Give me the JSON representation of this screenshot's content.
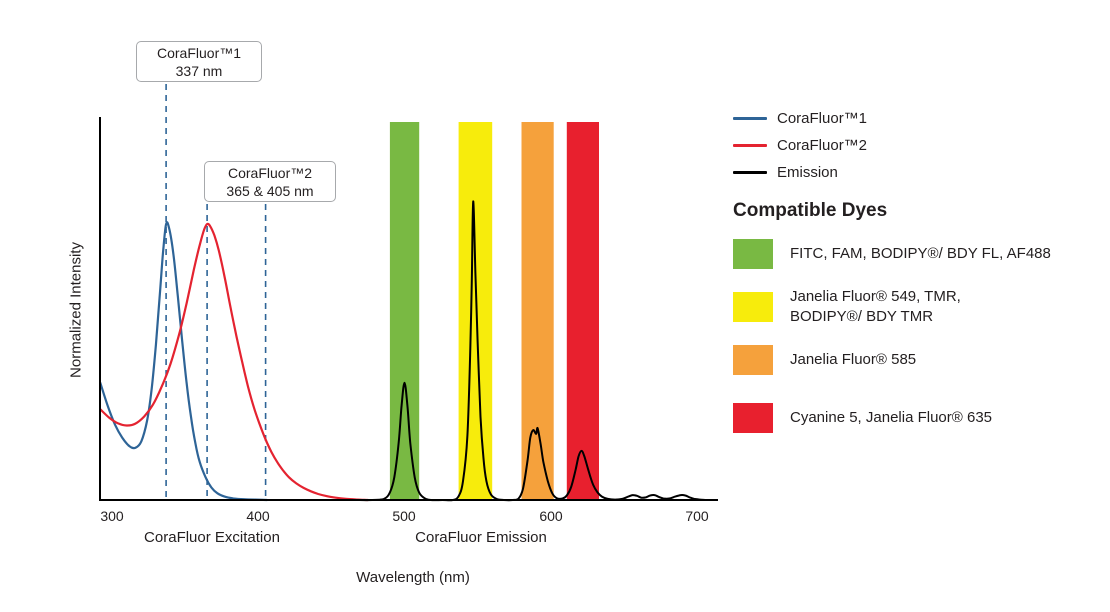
{
  "chart_data": {
    "type": "line",
    "title": "",
    "xlabel": "Wavelength (nm)",
    "ylabel": "Normalized Intensity",
    "ylim": [
      0,
      1
    ],
    "xlim_nm": [
      292,
      712
    ],
    "x_ticks": [
      "300",
      "400",
      "500",
      "600",
      "700"
    ],
    "x_tick_values": [
      300,
      400,
      500,
      600,
      700
    ],
    "grid": false,
    "axis_color": "#000000",
    "annotation_line_color": "#2e6497",
    "region_labels": [
      {
        "label": "CoraFluor Excitation"
      },
      {
        "label": "CoraFluor Emission"
      }
    ],
    "annotations": [
      {
        "title": "CoraFluor™1",
        "value": "337 nm",
        "lines_nm": [
          337
        ]
      },
      {
        "title": "CoraFluor™2",
        "value": "365 & 405 nm",
        "lines_nm": [
          365,
          405
        ]
      }
    ],
    "bands": [
      {
        "name": "green-filter-band",
        "color": "#79b943",
        "from_nm": 490,
        "to_nm": 510
      },
      {
        "name": "yellow-filter-band",
        "color": "#f7ec0c",
        "from_nm": 537,
        "to_nm": 560
      },
      {
        "name": "orange-filter-band",
        "color": "#f5a13c",
        "from_nm": 580,
        "to_nm": 602
      },
      {
        "name": "red-filter-band",
        "color": "#e8202e",
        "from_nm": 611,
        "to_nm": 633
      }
    ],
    "series": [
      {
        "key": "corafluor1-excitation",
        "name": "CoraFluor™1",
        "color": "#2e6497",
        "points": [
          [
            292,
            0.31
          ],
          [
            297,
            0.25
          ],
          [
            302,
            0.2
          ],
          [
            307,
            0.165
          ],
          [
            312,
            0.142
          ],
          [
            316,
            0.138
          ],
          [
            320,
            0.155
          ],
          [
            324,
            0.21
          ],
          [
            327,
            0.29
          ],
          [
            330,
            0.41
          ],
          [
            333,
            0.56
          ],
          [
            335,
            0.66
          ],
          [
            337,
            0.73
          ],
          [
            339,
            0.72
          ],
          [
            342,
            0.65
          ],
          [
            345,
            0.54
          ],
          [
            348,
            0.42
          ],
          [
            351,
            0.31
          ],
          [
            354,
            0.22
          ],
          [
            357,
            0.15
          ],
          [
            360,
            0.1
          ],
          [
            364,
            0.06
          ],
          [
            368,
            0.033
          ],
          [
            372,
            0.018
          ],
          [
            377,
            0.009
          ],
          [
            383,
            0.004
          ],
          [
            390,
            0.002
          ],
          [
            398,
            0.001
          ],
          [
            406,
            0
          ]
        ]
      },
      {
        "key": "corafluor2-excitation",
        "name": "CoraFluor™2",
        "color": "#e42330",
        "points": [
          [
            292,
            0.24
          ],
          [
            298,
            0.218
          ],
          [
            304,
            0.203
          ],
          [
            310,
            0.197
          ],
          [
            316,
            0.202
          ],
          [
            322,
            0.221
          ],
          [
            328,
            0.252
          ],
          [
            334,
            0.3
          ],
          [
            340,
            0.36
          ],
          [
            346,
            0.44
          ],
          [
            351,
            0.52
          ],
          [
            356,
            0.61
          ],
          [
            360,
            0.675
          ],
          [
            363,
            0.715
          ],
          [
            365,
            0.73
          ],
          [
            367,
            0.725
          ],
          [
            370,
            0.7
          ],
          [
            373,
            0.66
          ],
          [
            377,
            0.59
          ],
          [
            381,
            0.51
          ],
          [
            385,
            0.435
          ],
          [
            389,
            0.365
          ],
          [
            393,
            0.3
          ],
          [
            397,
            0.245
          ],
          [
            401,
            0.2
          ],
          [
            405,
            0.16
          ],
          [
            409,
            0.127
          ],
          [
            413,
            0.1
          ],
          [
            417,
            0.078
          ],
          [
            421,
            0.06
          ],
          [
            426,
            0.044
          ],
          [
            431,
            0.032
          ],
          [
            436,
            0.023
          ],
          [
            441,
            0.016
          ],
          [
            447,
            0.01
          ],
          [
            453,
            0.006
          ],
          [
            460,
            0.003
          ],
          [
            468,
            0.001
          ],
          [
            475,
            0
          ]
        ]
      },
      {
        "key": "emission",
        "name": "Emission",
        "color": "#000000",
        "points": [
          [
            292,
            0
          ],
          [
            350,
            0
          ],
          [
            420,
            0
          ],
          [
            460,
            0
          ],
          [
            478,
            0
          ],
          [
            486,
            0.003
          ],
          [
            490,
            0.02
          ],
          [
            493,
            0.06
          ],
          [
            496,
            0.15
          ],
          [
            498,
            0.25
          ],
          [
            500,
            0.31
          ],
          [
            502,
            0.25
          ],
          [
            504,
            0.15
          ],
          [
            507,
            0.06
          ],
          [
            510,
            0.02
          ],
          [
            514,
            0.004
          ],
          [
            518,
            0
          ],
          [
            526,
            0
          ],
          [
            533,
            0
          ],
          [
            537,
            0.01
          ],
          [
            540,
            0.05
          ],
          [
            543,
            0.17
          ],
          [
            545,
            0.4
          ],
          [
            546,
            0.58
          ],
          [
            547,
            0.79
          ],
          [
            548.5,
            0.6
          ],
          [
            550,
            0.42
          ],
          [
            552,
            0.22
          ],
          [
            554,
            0.11
          ],
          [
            556,
            0.05
          ],
          [
            559,
            0.015
          ],
          [
            563,
            0.003
          ],
          [
            568,
            0
          ],
          [
            574,
            0
          ],
          [
            578,
            0.004
          ],
          [
            581,
            0.03
          ],
          [
            584,
            0.1
          ],
          [
            586,
            0.165
          ],
          [
            588,
            0.185
          ],
          [
            590,
            0.175
          ],
          [
            591,
            0.19
          ],
          [
            593,
            0.15
          ],
          [
            595,
            0.1
          ],
          [
            598,
            0.05
          ],
          [
            601,
            0.018
          ],
          [
            604,
            0.005
          ],
          [
            608,
            0.004
          ],
          [
            611,
            0.012
          ],
          [
            614,
            0.035
          ],
          [
            617,
            0.08
          ],
          [
            619,
            0.115
          ],
          [
            621,
            0.13
          ],
          [
            623,
            0.115
          ],
          [
            626,
            0.075
          ],
          [
            629,
            0.04
          ],
          [
            632,
            0.02
          ],
          [
            635,
            0.009
          ],
          [
            639,
            0.003
          ],
          [
            644,
            0.001
          ],
          [
            649,
            0.003
          ],
          [
            653,
            0.009
          ],
          [
            656,
            0.013
          ],
          [
            659,
            0.011
          ],
          [
            662,
            0.006
          ],
          [
            665,
            0.007
          ],
          [
            668,
            0.012
          ],
          [
            671,
            0.013
          ],
          [
            674,
            0.008
          ],
          [
            677,
            0.004
          ],
          [
            681,
            0.004
          ],
          [
            685,
            0.009
          ],
          [
            689,
            0.013
          ],
          [
            692,
            0.012
          ],
          [
            695,
            0.007
          ],
          [
            698,
            0.003
          ],
          [
            702,
            0.001
          ],
          [
            706,
            0
          ]
        ]
      }
    ]
  },
  "legend": {
    "lines": [
      {
        "label": "CoraFluor™1",
        "color": "#2e6497"
      },
      {
        "label": "CoraFluor™2",
        "color": "#e42330"
      },
      {
        "label": "Emission",
        "color": "#000000"
      }
    ],
    "dyes_heading": "Compatible Dyes",
    "dyes": [
      {
        "label": "FITC, FAM, BODIPY®/ BDY FL, AF488",
        "color": "#79b943"
      },
      {
        "label": "Janelia Fluor® 549, TMR,\nBODIPY®/ BDY TMR",
        "color": "#f7ec0c"
      },
      {
        "label": "Janelia Fluor® 585",
        "color": "#f5a13c"
      },
      {
        "label": "Cyanine 5, Janelia Fluor® 635",
        "color": "#e8202e"
      }
    ]
  }
}
